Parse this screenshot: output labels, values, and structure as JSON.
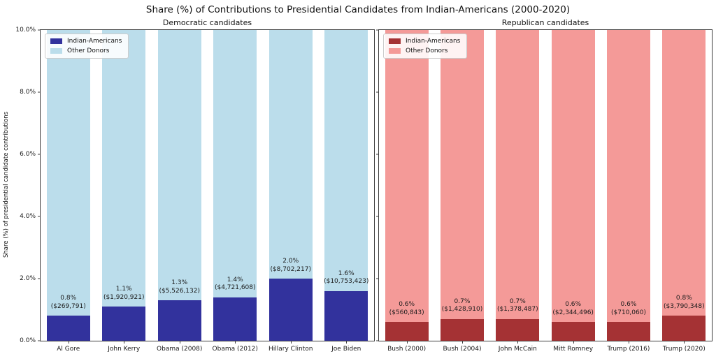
{
  "title": "Share (%) of Contributions to Presidential Candidates from Indian-Americans (2000-2020)",
  "y_axis": {
    "label": "Share (%) of presidential candidate contributions",
    "ticks": [
      "0.0%",
      "2.0%",
      "4.0%",
      "6.0%",
      "8.0%",
      "10.0%"
    ],
    "range": [
      0,
      10
    ]
  },
  "chart_data": [
    {
      "type": "bar",
      "stacked": true,
      "title": "Democratic candidates",
      "categories": [
        "Al Gore",
        "John Kerry",
        "Obama (2008)",
        "Obama (2012)",
        "Hillary Clinton",
        "Joe Biden"
      ],
      "series": [
        {
          "name": "Indian-Americans",
          "color": "#32329D",
          "values": [
            0.8,
            1.1,
            1.3,
            1.4,
            2.0,
            1.6
          ]
        },
        {
          "name": "Other Donors",
          "color": "#BBDDEB",
          "values": [
            9.2,
            8.9,
            8.7,
            8.6,
            8.0,
            8.4
          ]
        }
      ],
      "annotations": [
        {
          "pct": "0.8%",
          "amount": "($269,791)"
        },
        {
          "pct": "1.1%",
          "amount": "($1,920,921)"
        },
        {
          "pct": "1.3%",
          "amount": "($5,526,132)"
        },
        {
          "pct": "1.4%",
          "amount": "($4,721,608)"
        },
        {
          "pct": "2.0%",
          "amount": "($8,702,217)"
        },
        {
          "pct": "1.6%",
          "amount": "($10,753,423)"
        }
      ],
      "ylim": [
        0,
        10
      ],
      "grid": false,
      "legend_position": "upper-left"
    },
    {
      "type": "bar",
      "stacked": true,
      "title": "Republican candidates",
      "categories": [
        "Bush (2000)",
        "Bush (2004)",
        "John McCain",
        "Mitt Romney",
        "Trump (2016)",
        "Trump (2020)"
      ],
      "series": [
        {
          "name": "Indian-Americans",
          "color": "#A53234",
          "values": [
            0.6,
            0.7,
            0.7,
            0.6,
            0.6,
            0.8
          ]
        },
        {
          "name": "Other Donors",
          "color": "#F49A98",
          "values": [
            9.4,
            9.3,
            9.3,
            9.4,
            9.4,
            9.2
          ]
        }
      ],
      "annotations": [
        {
          "pct": "0.6%",
          "amount": "($560,843)"
        },
        {
          "pct": "0.7%",
          "amount": "($1,428,910)"
        },
        {
          "pct": "0.7%",
          "amount": "($1,378,487)"
        },
        {
          "pct": "0.6%",
          "amount": "($2,344,496)"
        },
        {
          "pct": "0.6%",
          "amount": "($710,060)"
        },
        {
          "pct": "0.8%",
          "amount": "($3,790,348)"
        }
      ],
      "ylim": [
        0,
        10
      ],
      "grid": false,
      "legend_position": "upper-left"
    }
  ]
}
